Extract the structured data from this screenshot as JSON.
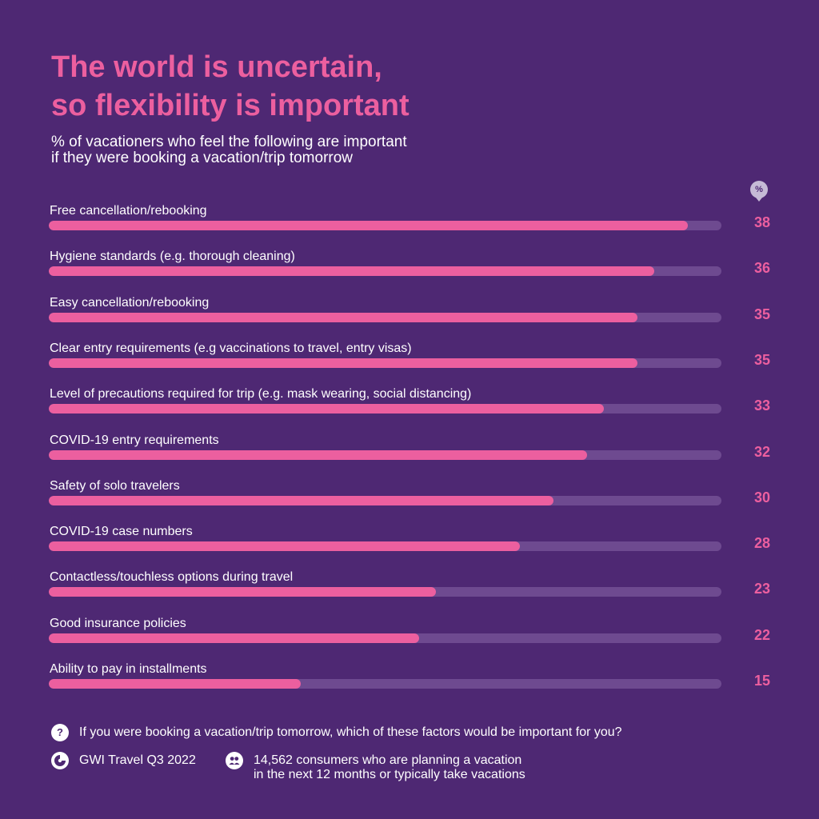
{
  "header": {
    "title_line1": "The world is uncertain,",
    "title_line2": "so flexibility is important",
    "subtitle_line1": "% of vacationers who feel the following are important",
    "subtitle_line2": "if they were booking a vacation/trip tomorrow",
    "unit_badge": "%"
  },
  "colors": {
    "background": "#4e2873",
    "accent": "#ec5f9f",
    "track": "#6e4a90"
  },
  "chart_data": {
    "type": "bar",
    "orientation": "horizontal",
    "title": "The world is uncertain, so flexibility is important",
    "subtitle": "% of vacationers who feel the following are important if they were booking a vacation/trip tomorrow",
    "unit": "%",
    "xlim": [
      0,
      40
    ],
    "grid": false,
    "categories": [
      "Free cancellation/rebooking",
      "Hygiene standards (e.g. thorough cleaning)",
      "Easy cancellation/rebooking",
      "Clear entry requirements (e.g vaccinations to travel, entry visas)",
      "Level of precautions required for trip (e.g. mask wearing, social distancing)",
      "COVID-19 entry requirements",
      "Safety of solo travelers",
      "COVID-19 case numbers",
      "Contactless/touchless options during travel",
      "Good insurance policies",
      "Ability to pay in installments"
    ],
    "values": [
      38,
      36,
      35,
      35,
      33,
      32,
      30,
      28,
      23,
      22,
      15
    ]
  },
  "footer": {
    "question_icon": "question-icon",
    "question": "If you were booking a vacation/trip tomorrow, which of these factors would be important for you?",
    "source_icon": "gwi-logo-icon",
    "source": "GWI Travel Q3 2022",
    "sample_icon": "people-icon",
    "sample_line1": "14,562 consumers who are planning a vacation",
    "sample_line2": "in the next 12 months or typically take vacations"
  }
}
